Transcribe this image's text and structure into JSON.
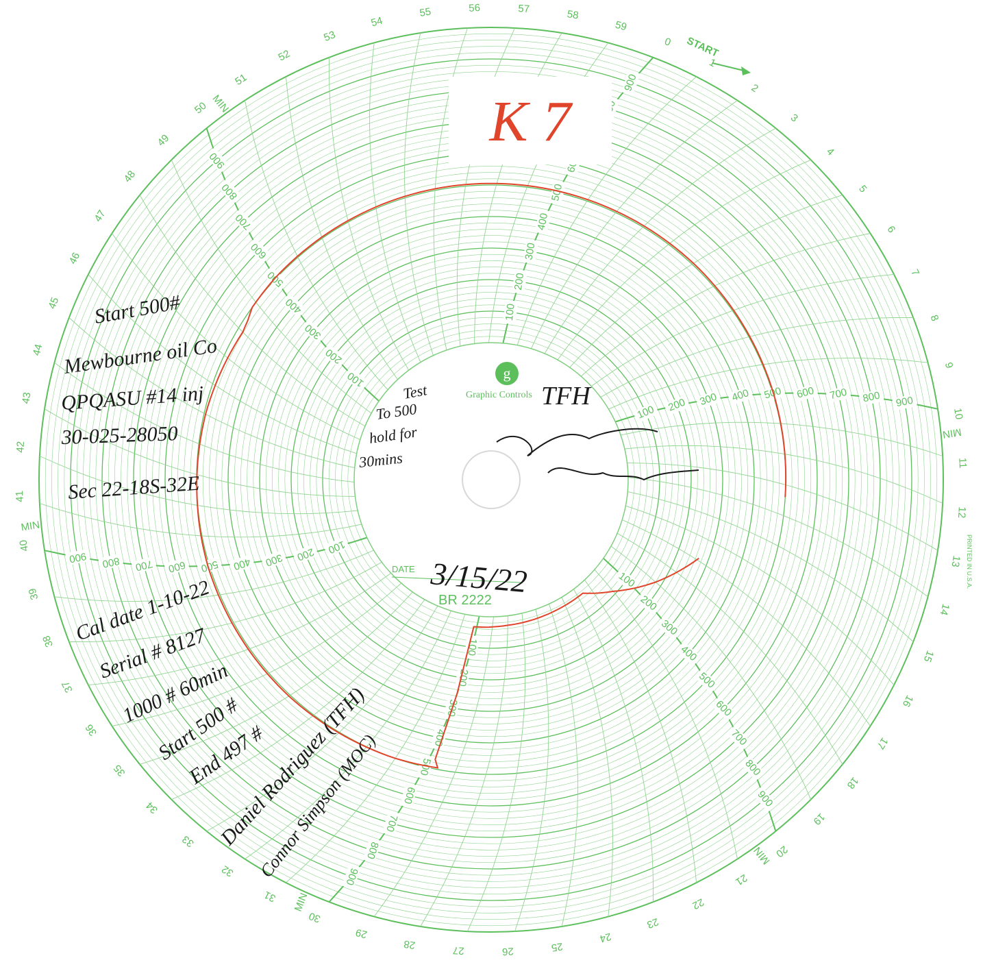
{
  "chart_data": {
    "type": "circular",
    "tag": "K 7",
    "start_label": "START",
    "x_unit_label": "MIN.",
    "xlim": [
      0,
      60
    ],
    "xticks": [
      0,
      1,
      2,
      3,
      4,
      5,
      6,
      7,
      8,
      9,
      10,
      11,
      12,
      13,
      14,
      15,
      16,
      17,
      18,
      19,
      20,
      21,
      22,
      23,
      24,
      25,
      26,
      27,
      28,
      29,
      30,
      31,
      32,
      33,
      34,
      35,
      36,
      37,
      38,
      39,
      40,
      41,
      42,
      43,
      44,
      45,
      46,
      47,
      48,
      49,
      50,
      51,
      52,
      53,
      54,
      55,
      56,
      57,
      58,
      59
    ],
    "ylim": [
      0,
      1000
    ],
    "yticks": [
      100,
      200,
      300,
      400,
      500,
      600,
      700,
      800,
      900
    ],
    "grid": true,
    "series": [
      {
        "color": "#e0452b",
        "x": [
          13.4,
          10,
          5,
          0,
          55,
          50,
          48.8,
          48.4,
          48,
          45,
          40,
          35,
          31,
          29.6,
          29.8,
          30.2,
          28,
          25,
          22.6,
          21,
          19,
          16.9
        ],
        "values": [
          500,
          502,
          505,
          505,
          505,
          503,
          500,
          488,
          482,
          495,
          505,
          505,
          500,
          495,
          470,
          35,
          30,
          28,
          28,
          90,
          180,
          270
        ]
      }
    ]
  },
  "printed": {
    "brand": "Graphic Controls",
    "date_label": "DATE",
    "chart_number": "BR 2222",
    "printed_in": "PRINTED IN U.S.A."
  },
  "handwriting": {
    "left_notes": [
      "Start 500#",
      "Mewbourne oil Co",
      "QPQASU #14 inj",
      "30-025-28050",
      "Sec 22-18S-32E"
    ],
    "lower_notes": [
      "Cal date 1-10-22",
      "Serial # 8127",
      "1000 # 60min",
      "Start 500 #",
      "End 497 #"
    ],
    "names": [
      "Daniel Rodriguez (TFH)",
      "Connor Simpson (MOC)"
    ],
    "center_notes": [
      "Test",
      "To 500",
      "hold for",
      "30mins"
    ],
    "initials": "TFH",
    "date": "3/15/22"
  }
}
